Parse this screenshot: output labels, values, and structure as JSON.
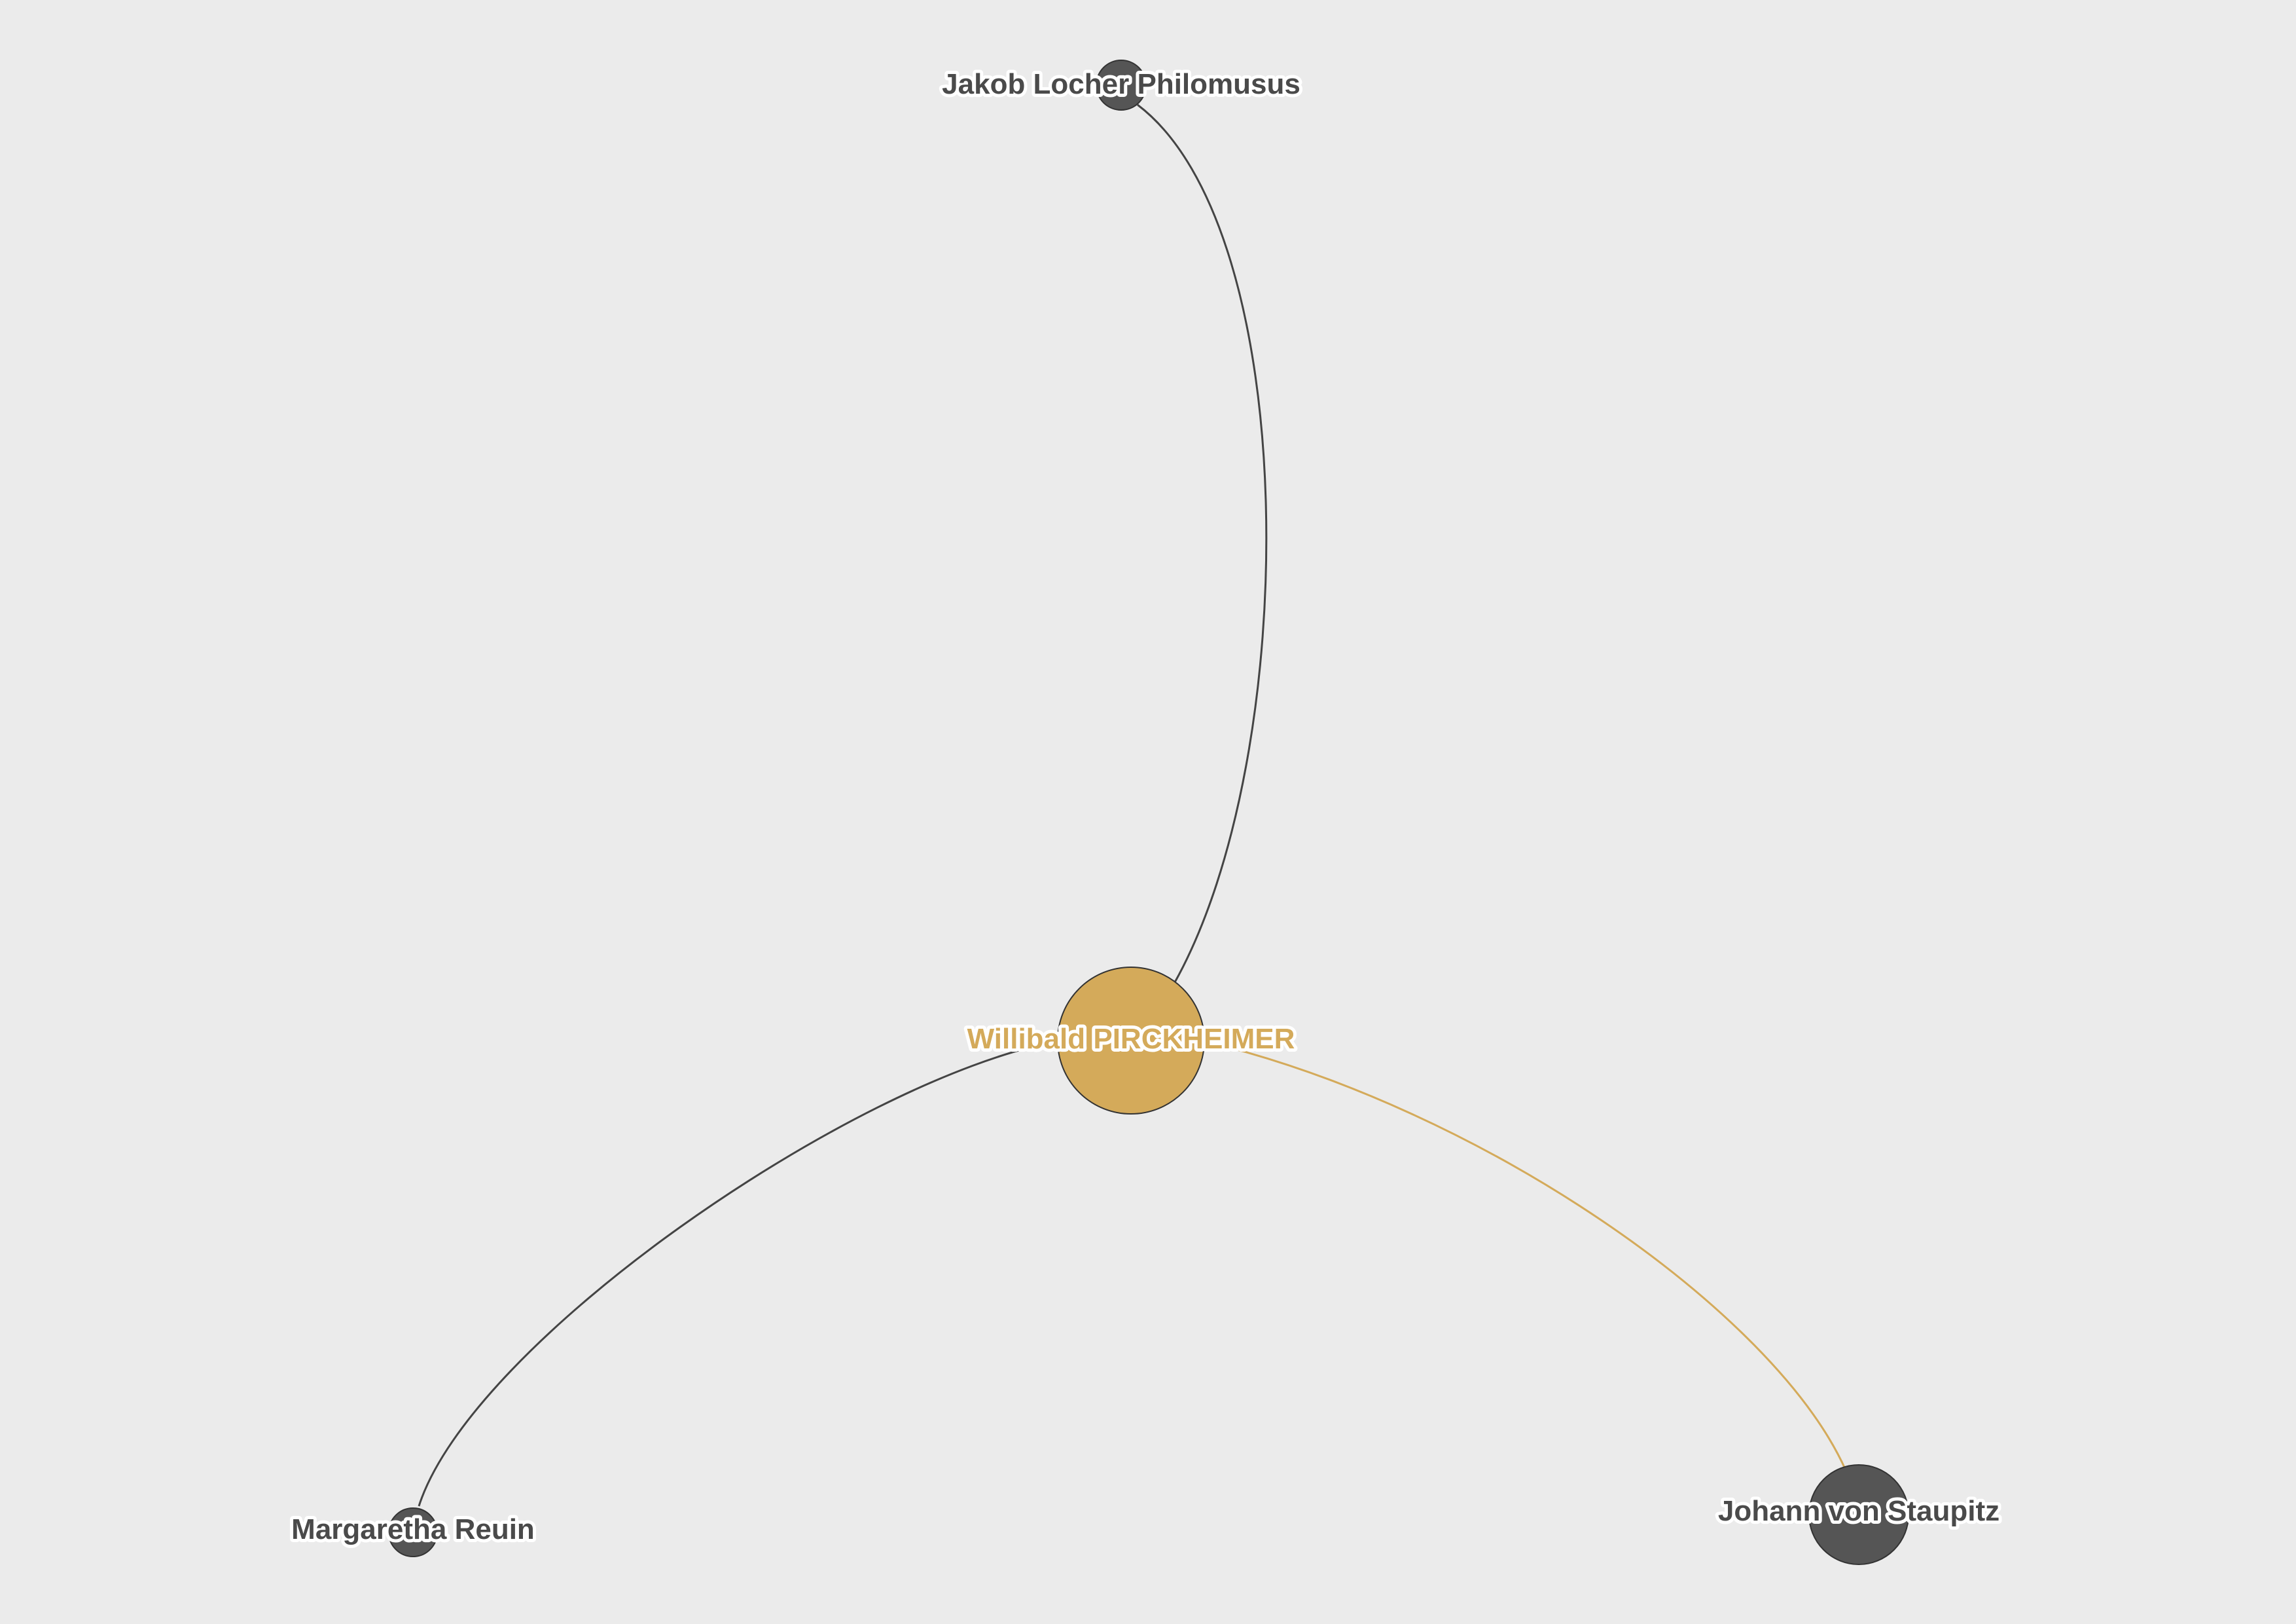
{
  "colors": {
    "background": "#ebebeb",
    "focus": "#d4aa5a",
    "node": "#555555",
    "edge": "#444444",
    "label": "#4a4a4a",
    "label_halo": "#ffffff"
  },
  "nodes": {
    "focus": {
      "label": "Willibald PIRCKHEIMER"
    },
    "locher": {
      "label": "Jakob Locher Philomusus"
    },
    "reuin": {
      "label": "Margaretha Reuin"
    },
    "staupitz": {
      "label": "Johann von Staupitz"
    }
  },
  "edges": [
    {
      "from": "focus",
      "to": "locher",
      "highlighted": false
    },
    {
      "from": "focus",
      "to": "reuin",
      "highlighted": false
    },
    {
      "from": "focus",
      "to": "staupitz",
      "highlighted": true
    }
  ]
}
